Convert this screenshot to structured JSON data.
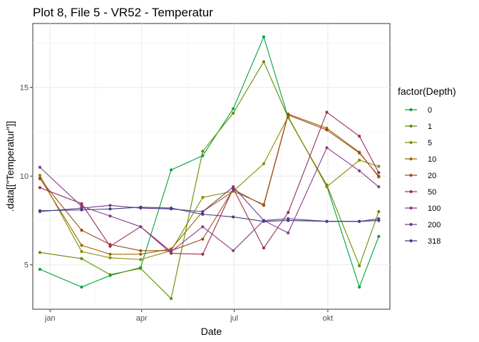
{
  "chart_data": {
    "type": "line",
    "title": "Plot 8, File 5 - VR52  -  Temperatur",
    "xlabel": "Date",
    "ylabel": ".data[[\"Temperatur\"]]",
    "x_ticks": [
      {
        "label": "jan",
        "value": "2021-01-01"
      },
      {
        "label": "apr",
        "value": "2021-04-01"
      },
      {
        "label": "jul",
        "value": "2021-07-01"
      },
      {
        "label": "okt",
        "value": "2021-10-01"
      }
    ],
    "y_ticks": [
      5,
      10,
      15
    ],
    "xlim": [
      "2020-12-15",
      "2021-12-01"
    ],
    "ylim": [
      2.5,
      18.6
    ],
    "grid": true,
    "legend": {
      "title": "factor(Depth)",
      "position": "right"
    },
    "x": [
      "2020-12-22",
      "2021-02-01",
      "2021-03-01",
      "2021-03-31",
      "2021-04-30",
      "2021-05-31",
      "2021-06-30",
      "2021-07-30",
      "2021-08-23",
      "2021-09-30",
      "2021-11-01",
      "2021-11-20"
    ],
    "series": [
      {
        "name": "0",
        "color": "#00a33e",
        "values": [
          4.75,
          3.75,
          4.4,
          4.85,
          10.35,
          11.15,
          13.8,
          17.85,
          13.3,
          9.45,
          3.75,
          6.6
        ]
      },
      {
        "name": "1",
        "color": "#5f8f00",
        "values": [
          5.7,
          5.35,
          4.45,
          4.8,
          3.1,
          11.4,
          13.55,
          16.45,
          13.3,
          9.5,
          4.95,
          8.0
        ]
      },
      {
        "name": "5",
        "color": "#8a8a00",
        "values": [
          10.05,
          5.75,
          5.4,
          5.3,
          5.8,
          8.8,
          9.15,
          10.7,
          13.35,
          9.4,
          10.9,
          10.55
        ]
      },
      {
        "name": "10",
        "color": "#9a6a00",
        "values": [
          9.9,
          6.1,
          5.6,
          5.6,
          5.9,
          8.0,
          9.15,
          8.4,
          13.5,
          12.7,
          11.35,
          9.95
        ]
      },
      {
        "name": "20",
        "color": "#9e4a1e",
        "values": [
          9.85,
          6.95,
          6.15,
          5.8,
          5.8,
          6.45,
          9.25,
          8.35,
          13.45,
          12.6,
          11.3,
          10.0
        ]
      },
      {
        "name": "50",
        "color": "#9a2d57",
        "values": [
          9.35,
          8.45,
          6.05,
          7.15,
          5.65,
          5.6,
          9.3,
          5.95,
          7.95,
          13.6,
          12.25,
          10.2
        ]
      },
      {
        "name": "100",
        "color": "#8d3a8d",
        "values": [
          10.5,
          8.3,
          7.75,
          7.15,
          5.75,
          7.15,
          5.8,
          7.5,
          6.8,
          11.6,
          10.3,
          9.4
        ]
      },
      {
        "name": "200",
        "color": "#6a3d8c",
        "values": [
          8.0,
          8.2,
          8.35,
          8.2,
          8.15,
          8.0,
          9.4,
          7.5,
          7.6,
          7.45,
          7.45,
          7.6
        ]
      },
      {
        "name": "318",
        "color": "#3a3f86",
        "values": [
          8.05,
          8.1,
          8.15,
          8.25,
          8.2,
          7.85,
          7.7,
          7.45,
          7.5,
          7.45,
          7.45,
          7.5
        ]
      }
    ]
  }
}
